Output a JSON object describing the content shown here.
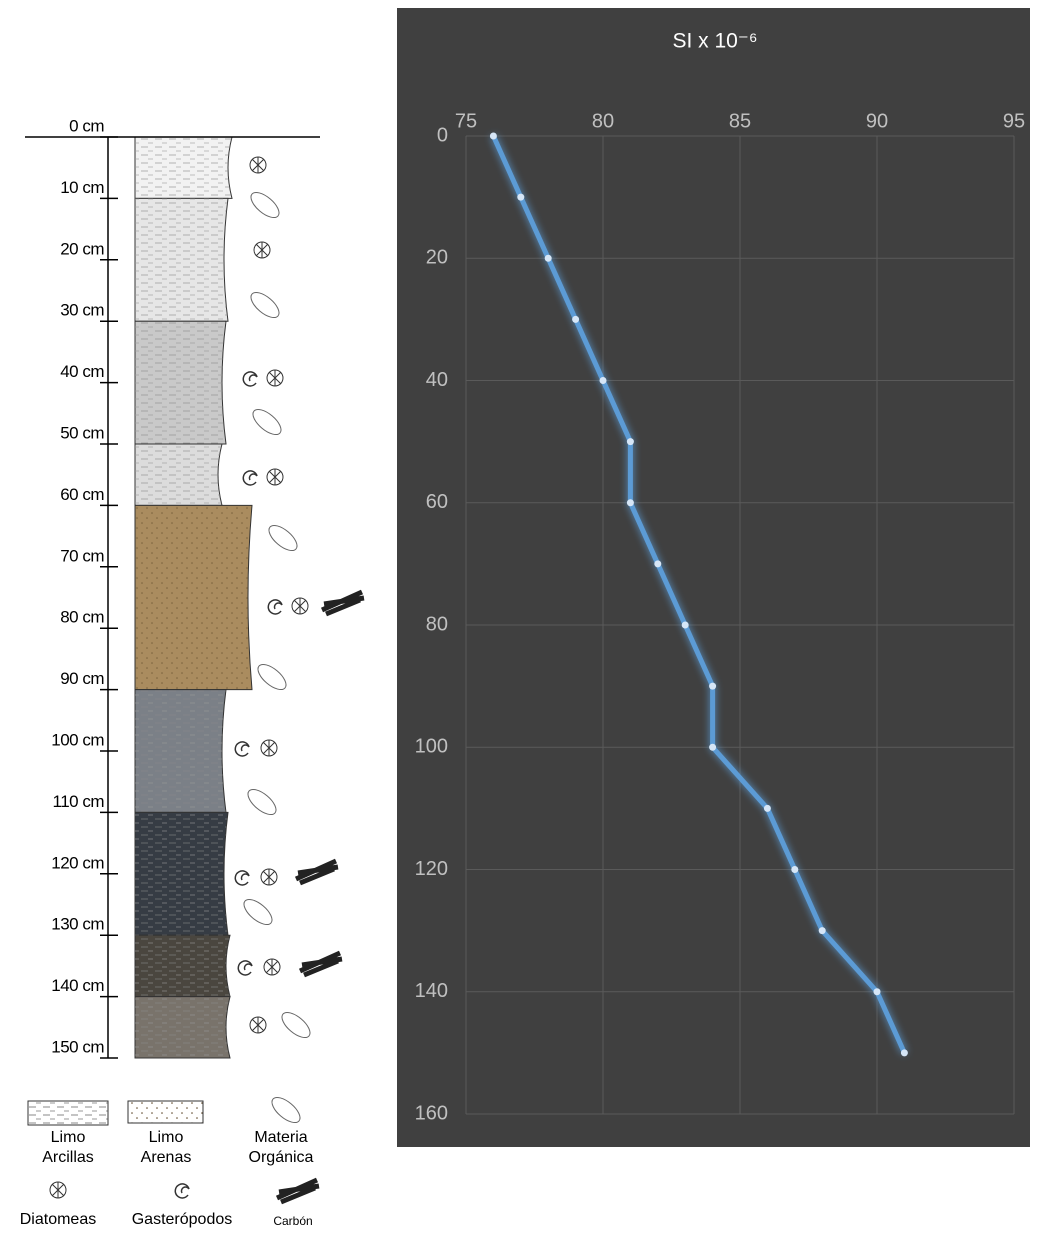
{
  "chart_data": {
    "type": "line",
    "title": "SI x 10⁻⁶",
    "y": [
      0,
      10,
      20,
      30,
      40,
      50,
      60,
      70,
      80,
      90,
      100,
      110,
      120,
      130,
      140,
      150
    ],
    "series": [
      {
        "color": "#5b9bd5",
        "values": [
          76,
          77,
          78,
          79,
          80,
          81,
          81,
          82,
          83,
          84,
          84,
          86,
          87,
          88,
          90,
          91
        ]
      }
    ],
    "xlim": [
      75,
      95
    ],
    "xticks": [
      75,
      80,
      85,
      90,
      95
    ],
    "ylim": [
      0,
      160
    ],
    "yticks": [
      0,
      20,
      40,
      60,
      80,
      100,
      120,
      140,
      160
    ],
    "y_inverted": true,
    "x_axis_position": "top",
    "grid": true,
    "background": "#404040"
  },
  "column": {
    "depth_labels": [
      "0 cm",
      "10 cm",
      "20 cm",
      "30 cm",
      "40 cm",
      "50 cm",
      "60 cm",
      "70 cm",
      "80 cm",
      "90 cm",
      "100 cm",
      "110 cm",
      "120 cm",
      "130 cm",
      "140 cm",
      "150 cm"
    ],
    "legend": [
      [
        "Limo",
        "Arcillas"
      ],
      [
        "Limo",
        "Arenas"
      ],
      [
        "Materia",
        "Orgánica"
      ],
      [
        "Diatomeas"
      ],
      [
        "Gasterópodos"
      ],
      [
        "Carbón"
      ]
    ]
  }
}
